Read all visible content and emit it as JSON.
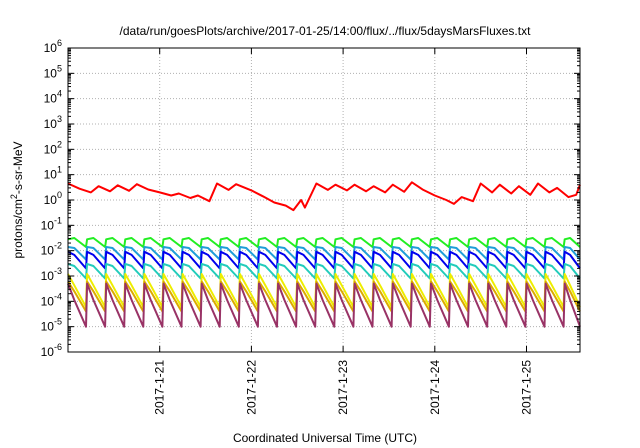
{
  "chart_data": {
    "type": "line",
    "title": "/data/run/goesPlots/archive/2017-01-25/14:00/flux/../flux/5daysMarsFluxes.txt",
    "xlabel": "Coordinated Universal Time (UTC)",
    "ylabel": "protons/cm2-s-sr-MeV",
    "ylabel_parts": {
      "base": "protons/cm",
      "sup": "2",
      "rest": "-s-sr-MeV"
    },
    "yscale": "log",
    "ylim_exp": [
      -6,
      6
    ],
    "ytick_exponents": [
      -6,
      -5,
      -4,
      -3,
      -2,
      -1,
      0,
      1,
      2,
      3,
      4,
      5,
      6
    ],
    "ytick_base": "10",
    "xlim": [
      "2017-01-20T00:00",
      "2017-01-25T14:00"
    ],
    "xticks": [
      {
        "value": "2017-01-21T00:00",
        "label": "2017-1-21"
      },
      {
        "value": "2017-01-22T00:00",
        "label": "2017-1-22"
      },
      {
        "value": "2017-01-23T00:00",
        "label": "2017-1-23"
      },
      {
        "value": "2017-01-24T00:00",
        "label": "2017-1-24"
      },
      {
        "value": "2017-01-25T00:00",
        "label": "2017-1-25"
      }
    ],
    "grid": true,
    "legend": "none",
    "series": [
      {
        "color": "#ff0000",
        "points": [
          [
            "2017-01-20T00:00",
            4.5
          ],
          [
            "2017-01-20T03:00",
            2.8
          ],
          [
            "2017-01-20T06:00",
            2.0
          ],
          [
            "2017-01-20T08:00",
            3.5
          ],
          [
            "2017-01-20T11:00",
            2.2
          ],
          [
            "2017-01-20T13:00",
            3.8
          ],
          [
            "2017-01-20T16:00",
            2.3
          ],
          [
            "2017-01-20T18:00",
            4.2
          ],
          [
            "2017-01-20T21:00",
            2.6
          ],
          [
            "2017-01-21T00:00",
            2.0
          ],
          [
            "2017-01-21T03:00",
            1.5
          ],
          [
            "2017-01-21T05:00",
            1.8
          ],
          [
            "2017-01-21T08:00",
            1.2
          ],
          [
            "2017-01-21T10:00",
            1.5
          ],
          [
            "2017-01-21T13:00",
            0.9
          ],
          [
            "2017-01-21T15:00",
            4.5
          ],
          [
            "2017-01-21T18:00",
            2.5
          ],
          [
            "2017-01-21T20:00",
            4.2
          ],
          [
            "2017-01-22T00:00",
            2.4
          ],
          [
            "2017-01-22T03:00",
            1.4
          ],
          [
            "2017-01-22T06:00",
            0.8
          ],
          [
            "2017-01-22T09:00",
            0.6
          ],
          [
            "2017-01-22T11:00",
            0.4
          ],
          [
            "2017-01-22T13:00",
            1.0
          ],
          [
            "2017-01-22T14:00",
            0.5
          ],
          [
            "2017-01-22T17:00",
            4.5
          ],
          [
            "2017-01-22T20:00",
            2.5
          ],
          [
            "2017-01-22T22:00",
            4.0
          ],
          [
            "2017-01-23T01:00",
            2.4
          ],
          [
            "2017-01-23T03:00",
            4.0
          ],
          [
            "2017-01-23T06:00",
            2.2
          ],
          [
            "2017-01-23T08:00",
            3.5
          ],
          [
            "2017-01-23T11:00",
            2.0
          ],
          [
            "2017-01-23T13:00",
            4.0
          ],
          [
            "2017-01-23T16:00",
            2.1
          ],
          [
            "2017-01-23T18:00",
            5.0
          ],
          [
            "2017-01-23T21:00",
            2.5
          ],
          [
            "2017-01-24T00:00",
            1.5
          ],
          [
            "2017-01-24T03:00",
            1.0
          ],
          [
            "2017-01-24T05:00",
            0.7
          ],
          [
            "2017-01-24T07:00",
            1.3
          ],
          [
            "2017-01-24T10:00",
            0.9
          ],
          [
            "2017-01-24T12:00",
            4.5
          ],
          [
            "2017-01-24T15:00",
            2.0
          ],
          [
            "2017-01-24T17:00",
            4.0
          ],
          [
            "2017-01-24T20:00",
            1.8
          ],
          [
            "2017-01-24T22:00",
            3.5
          ],
          [
            "2017-01-25T01:00",
            1.6
          ],
          [
            "2017-01-25T03:00",
            4.5
          ],
          [
            "2017-01-25T06:00",
            2.0
          ],
          [
            "2017-01-25T08:00",
            3.0
          ],
          [
            "2017-01-25T11:00",
            1.3
          ],
          [
            "2017-01-25T13:00",
            1.6
          ],
          [
            "2017-01-25T14:00",
            4.0
          ]
        ]
      },
      {
        "color": "#22ee22",
        "sawtooth": {
          "peak": 0.028,
          "trough": 0.014
        }
      },
      {
        "color": "#1f9ed8",
        "sawtooth": {
          "peak": 0.014,
          "trough": 0.0045
        }
      },
      {
        "color": "#0000ee",
        "sawtooth": {
          "peak": 0.009,
          "trough": 0.002
        }
      },
      {
        "color": "#22ccbb",
        "sawtooth": {
          "peak": 0.003,
          "trough": 0.0008
        }
      },
      {
        "color": "#eeee00",
        "sawtooth": {
          "peak": 0.0012,
          "trough": 6e-05
        }
      },
      {
        "color": "#ddaa00",
        "sawtooth": {
          "peak": 0.0006,
          "trough": 4e-05
        }
      },
      {
        "color": "#993366",
        "sawtooth": {
          "peak": 0.0005,
          "trough": 1e-05
        }
      }
    ],
    "sawtooth_period_hours": 5
  }
}
